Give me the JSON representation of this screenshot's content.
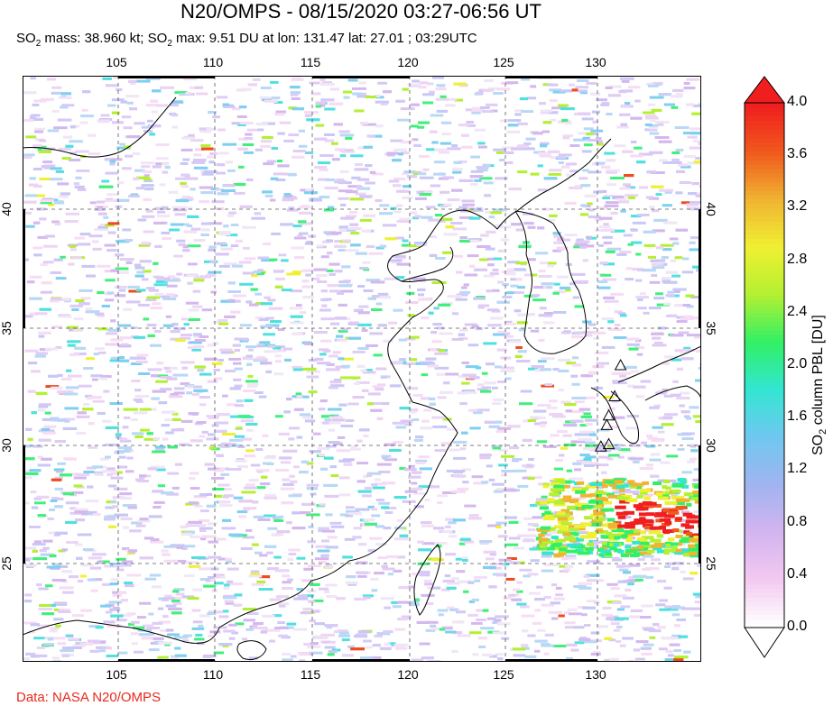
{
  "header": {
    "title": "N20/OMPS - 08/15/2020 03:27-06:56 UT",
    "subtitle_parts": [
      "SO",
      "2",
      " mass: 38.960 kt; SO",
      "2",
      " max: 9.51 DU at lon: 131.47 lat: 27.01 ; 03:29UTC"
    ]
  },
  "credit": "Data: NASA N20/OMPS",
  "map": {
    "lon_range": [
      100.5,
      135
    ],
    "lat_range": [
      20.5,
      45
    ],
    "lon_ticks": [
      "105",
      "110",
      "115",
      "120",
      "125",
      "130"
    ],
    "lat_ticks": [
      "40",
      "35",
      "30",
      "25"
    ],
    "grid": "dashed",
    "volcano_markers": [
      {
        "lon": 130.9,
        "lat": 32.9
      },
      {
        "lon": 130.6,
        "lat": 31.6
      },
      {
        "lon": 130.3,
        "lat": 30.8
      },
      {
        "lon": 130.2,
        "lat": 30.4
      },
      {
        "lon": 130.3,
        "lat": 29.6
      },
      {
        "lon": 129.9,
        "lat": 29.5
      }
    ]
  },
  "colorbar": {
    "title_parts": [
      "SO",
      "2",
      " column PBL [DU]"
    ],
    "min": 0.0,
    "max": 4.0,
    "ticks": [
      "4.0",
      "3.6",
      "3.2",
      "2.8",
      "2.4",
      "2.0",
      "1.6",
      "1.2",
      "0.8",
      "0.4",
      "0.0"
    ],
    "colors": [
      "#ffffff",
      "#f3c8f0",
      "#d2b4f0",
      "#a0b4f0",
      "#6ec8f0",
      "#32e6d2",
      "#32f064",
      "#b4f032",
      "#f0f032",
      "#f0b432",
      "#f05a1e",
      "#f01e1e"
    ]
  }
}
